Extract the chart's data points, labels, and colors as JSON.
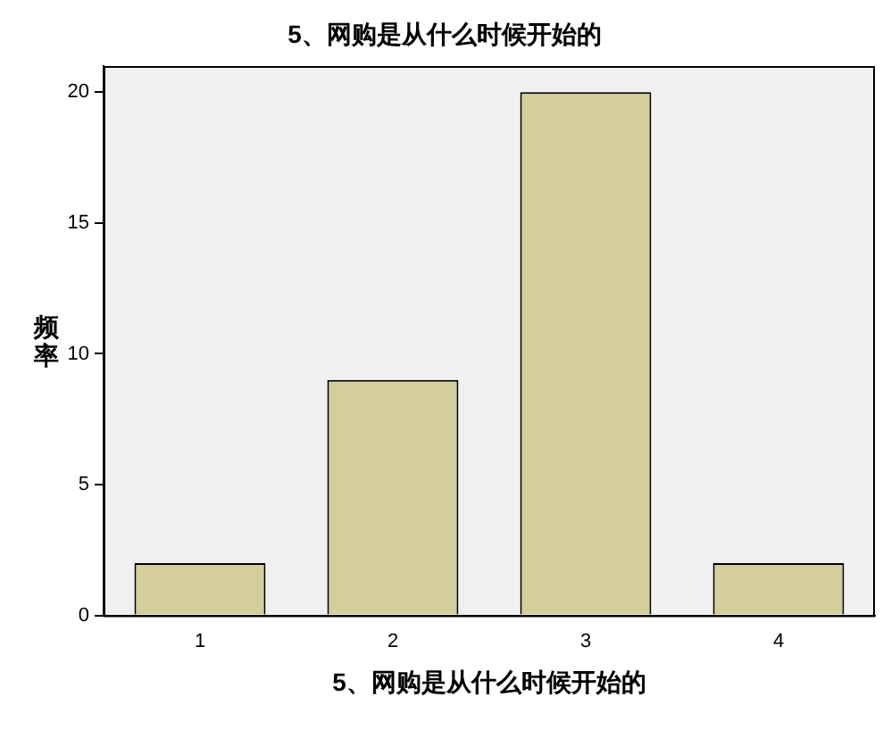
{
  "chart_data": {
    "type": "bar",
    "title": "5、网购是从什么时候开始的",
    "xlabel": "5、网购是从什么时候开始的",
    "ylabel": "频率",
    "categories": [
      "1",
      "2",
      "3",
      "4"
    ],
    "values": [
      2,
      9,
      20,
      2
    ],
    "color": "#d3ce9b",
    "ylim": [
      0,
      21
    ],
    "yticks": [
      0,
      5,
      10,
      15,
      20
    ],
    "grid": false,
    "legend": false
  }
}
